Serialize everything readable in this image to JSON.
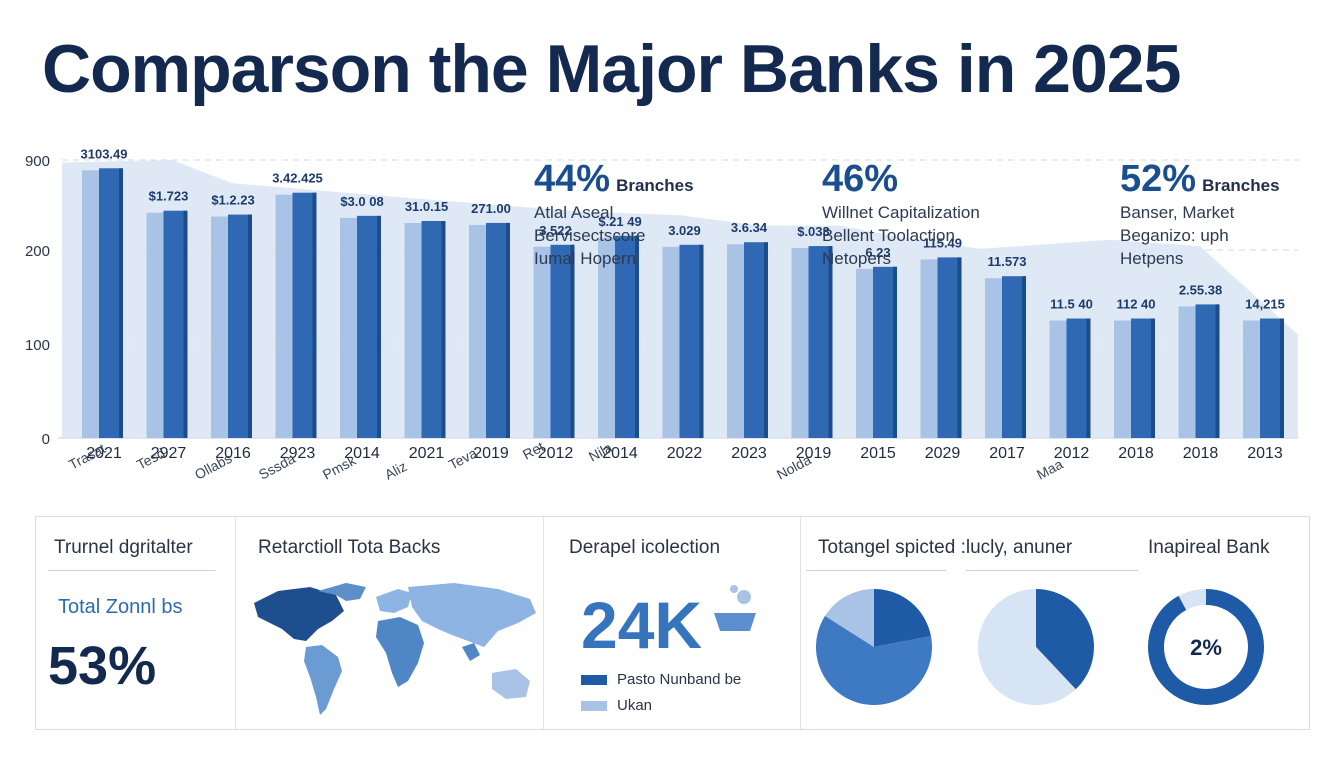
{
  "title": "Comparson the Major Banks in 2025",
  "colors": {
    "bar_front": "#2f69b4",
    "bar_light": "#a9c3e6",
    "area": "#d9e5f4",
    "navy": "#13294f",
    "accent": "#1a5aa6",
    "pale": "#d6e4f3"
  },
  "chart_data": {
    "type": "bar",
    "ylim": [
      0,
      900
    ],
    "y_ticks": [
      "900",
      "200",
      "100",
      "0"
    ],
    "categories": [
      "2021",
      "2927",
      "2016",
      "2923",
      "2014",
      "2021",
      "2019",
      "2012",
      "2014",
      "2022",
      "2023",
      "2019",
      "2015",
      "2029",
      "2017",
      "2012",
      "2018",
      "2018",
      "2013"
    ],
    "values": [
      820,
      490,
      460,
      630,
      450,
      410,
      395,
      225,
      295,
      225,
      245,
      215,
      180,
      190,
      170,
      125,
      125,
      140,
      125
    ],
    "data_labels": [
      "3103.49",
      "$1.723",
      "$1.2.23",
      "3.42.425",
      "$3.0 08",
      "31.0.15",
      "271.00",
      "3.522",
      "$.21 49",
      "3.029",
      "3.6.34",
      "$.033",
      "6.23",
      "115.49",
      "11.573",
      "11.5 40",
      "112 40",
      "2.55.38",
      "14,215"
    ],
    "rotated_labels": [
      "Trasat",
      "Tesd",
      "Ollabs",
      "Sssda",
      "Pmsk",
      "Aliz",
      "Teva",
      "Ret",
      "Nila",
      "Nolda",
      "Maa"
    ],
    "area_values": [
      880,
      900,
      720,
      610,
      500,
      470,
      390,
      390,
      300,
      210,
      230,
      280,
      230,
      110
    ],
    "callouts": [
      {
        "big": "44%",
        "suffix": "Branches",
        "lines": [
          "Atlal Aseal",
          "Bervisectscore",
          "Iumal Hopern"
        ]
      },
      {
        "big": "46%",
        "suffix": "",
        "lines": [
          "Willnet Capitalization",
          "Bellent Toolaction",
          "Netopers"
        ]
      },
      {
        "big": "52%",
        "suffix": "Branches",
        "lines": [
          "Banser, Market",
          "Beganizo: uph",
          "Hetpens"
        ]
      }
    ]
  },
  "panels": {
    "p1": {
      "title": "Trurnel dgritalter",
      "subtitle": "Total Zonnl bs",
      "value": "53%"
    },
    "p2": {
      "title": "Retarctioll Tota Backs"
    },
    "p3": {
      "title": "Derapel icolection",
      "value": "24K",
      "legend": [
        "Pasto Nunband be",
        "Ukan"
      ]
    },
    "p4": {
      "title": "Totangel spicted :lucly, anuner"
    },
    "p5": {
      "title": "Inapireal Bank",
      "value": "2%"
    },
    "pie1": {
      "values": [
        0.22,
        0.62,
        0.16
      ]
    },
    "pie2": {
      "values": [
        0.38,
        0.62
      ]
    },
    "donut": {
      "value": 0.92
    }
  }
}
